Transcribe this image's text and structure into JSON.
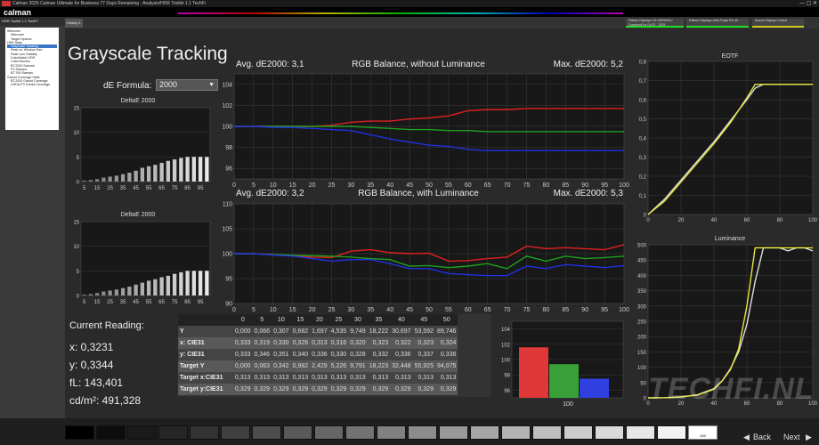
{
  "window": {
    "title": "Calman 2025 Calman Ultimate for Business 77 Days Remaining - Analysis/HDR Toolkit 1.1 TechFi",
    "controls": "—  ▢  ✕"
  },
  "app": {
    "logo": "calman"
  },
  "sidebar": {
    "header": "HDR Toolkit 1.1 TechFi",
    "items": [
      {
        "label": "Welcome",
        "selected": false
      },
      {
        "label": "Welcome",
        "selected": false
      },
      {
        "label": "Target Options",
        "selected": false
      },
      {
        "label": "HDR Stats",
        "selected": false
      },
      {
        "label": "Grayscale Tracking",
        "selected": true
      },
      {
        "label": "Peak vs. Window Size",
        "selected": false
      },
      {
        "label": "Peak Lum Stability",
        "selected": false
      },
      {
        "label": "ColorMatch HDR",
        "selected": false
      },
      {
        "label": "ColorChecker",
        "selected": false
      },
      {
        "label": "BT.2020 Saturati",
        "selected": false
      },
      {
        "label": "P3 Sweeps",
        "selected": false
      },
      {
        "label": "BT.709 Sweeps",
        "selected": false
      },
      {
        "label": "Gamut Coverage Stats",
        "selected": false
      },
      {
        "label": "BT.2020 Gamut Coverage",
        "selected": false
      },
      {
        "label": "UHDA-P3 Gamut Coverage",
        "selected": false
      }
    ]
  },
  "tabs": {
    "history": "History 1"
  },
  "devices": [
    {
      "label": "Pattern Displays CS HDR5000 / QuantumDot OLED - 2025",
      "color": "#22cc22"
    },
    {
      "label": "Pattern Displays Ultra Forge Pro 4K",
      "color": "#22cc22"
    },
    {
      "label": "Source Display Control",
      "color": "#cccc22"
    }
  ],
  "page": {
    "title": "Grayscale Tracking",
    "de_formula_label": "dE Formula:",
    "de_formula_value": "2000"
  },
  "reading": {
    "title": "Current Reading:",
    "x": "x: 0,3231",
    "y": "y: 0,3344",
    "fl": "fL: 143,401",
    "cdm2": "cd/m²: 491,328"
  },
  "charts": {
    "de_top_title": "DeltaE 2000",
    "de_bottom_title": "DeltaE 2000",
    "rgb1_avg": "Avg. dE2000: 3,1",
    "rgb1_title": "RGB Balance, without Luminance",
    "rgb1_max": "Max. dE2000: 5,2",
    "rgb2_avg": "Avg. dE2000: 3,2",
    "rgb2_title": "RGB Balance, with Luminance",
    "rgb2_max": "Max. dE2000: 5,3",
    "eotf_title": "EOTF",
    "lum_title": "Luminance",
    "rgbbar_xlabel": "100"
  },
  "chart_data": [
    {
      "id": "de_top",
      "type": "bar",
      "title": "DeltaE 2000",
      "categories": [
        "5",
        "10",
        "15",
        "20",
        "25",
        "30",
        "35",
        "40",
        "45",
        "50",
        "55",
        "60",
        "65",
        "70",
        "75",
        "80",
        "85",
        "90",
        "95",
        "100"
      ],
      "xticks": [
        "5",
        "15",
        "25",
        "35",
        "45",
        "55",
        "65",
        "75",
        "85",
        "95"
      ],
      "values": [
        0.2,
        0.3,
        0.5,
        0.8,
        1.0,
        1.2,
        1.5,
        1.8,
        2.2,
        2.8,
        3.1,
        3.4,
        3.8,
        4.2,
        4.5,
        4.8,
        5.0,
        5.0,
        5.0,
        5.0
      ],
      "ylim": [
        0,
        15
      ],
      "yticks": [
        0,
        5,
        10,
        15
      ]
    },
    {
      "id": "de_bottom",
      "type": "bar",
      "title": "DeltaE 2000",
      "categories": [
        "5",
        "10",
        "15",
        "20",
        "25",
        "30",
        "35",
        "40",
        "45",
        "50",
        "55",
        "60",
        "65",
        "70",
        "75",
        "80",
        "85",
        "90",
        "95",
        "100"
      ],
      "xticks": [
        "5",
        "15",
        "25",
        "35",
        "45",
        "55",
        "65",
        "75",
        "85",
        "95"
      ],
      "values": [
        0.2,
        0.3,
        0.5,
        0.8,
        1.0,
        1.2,
        1.5,
        1.8,
        2.2,
        2.6,
        3.0,
        3.3,
        3.7,
        4.0,
        4.4,
        4.7,
        5.0,
        5.0,
        5.0,
        5.0
      ],
      "ylim": [
        0,
        15
      ],
      "yticks": [
        0,
        5,
        10,
        15
      ]
    },
    {
      "id": "rgb1",
      "type": "line",
      "x": [
        0,
        5,
        10,
        15,
        20,
        25,
        30,
        35,
        40,
        45,
        50,
        55,
        60,
        65,
        70,
        75,
        80,
        85,
        90,
        95,
        100
      ],
      "ylim": [
        95,
        105
      ],
      "yticks": [
        96,
        98,
        100,
        102,
        104
      ],
      "xticks": [
        0,
        5,
        10,
        15,
        20,
        25,
        30,
        35,
        40,
        45,
        50,
        55,
        60,
        65,
        70,
        75,
        80,
        85,
        90,
        95,
        100
      ],
      "series": [
        {
          "color": "#e02020",
          "values": [
            100,
            100,
            100,
            100,
            100,
            100.1,
            100.4,
            100.5,
            100.5,
            100.7,
            100.8,
            101.0,
            101.5,
            101.6,
            101.6,
            101.7,
            101.7,
            101.7,
            101.7,
            101.7,
            101.7
          ]
        },
        {
          "color": "#20a020",
          "values": [
            100,
            100,
            100,
            100,
            100,
            100,
            100,
            99.9,
            99.8,
            99.7,
            99.7,
            99.6,
            99.6,
            99.5,
            99.5,
            99.5,
            99.5,
            99.5,
            99.5,
            99.5,
            99.5
          ]
        },
        {
          "color": "#2030e0",
          "values": [
            100,
            100,
            99.9,
            99.9,
            99.8,
            99.7,
            99.6,
            99.2,
            98.8,
            98.5,
            98.2,
            98.1,
            97.8,
            97.7,
            97.7,
            97.7,
            97.7,
            97.7,
            97.7,
            97.7,
            97.7
          ]
        }
      ]
    },
    {
      "id": "rgb2",
      "type": "line",
      "x": [
        0,
        5,
        10,
        15,
        20,
        25,
        30,
        35,
        40,
        45,
        50,
        55,
        60,
        65,
        70,
        75,
        80,
        85,
        90,
        95,
        100
      ],
      "ylim": [
        90,
        110
      ],
      "yticks": [
        90,
        95,
        100,
        105,
        110
      ],
      "xticks": [
        0,
        5,
        10,
        15,
        20,
        25,
        30,
        35,
        40,
        45,
        50,
        55,
        60,
        65,
        70,
        75,
        80,
        85,
        90,
        95,
        100
      ],
      "series": [
        {
          "color": "#e02020",
          "values": [
            100,
            100,
            99.8,
            99.6,
            99.3,
            99.2,
            100.5,
            100.8,
            100.2,
            100.0,
            100.1,
            98.5,
            98.6,
            99.0,
            99.3,
            101.5,
            101.0,
            101.2,
            101.0,
            100.8,
            101.8
          ]
        },
        {
          "color": "#20a020",
          "values": [
            100,
            100,
            99.8,
            99.7,
            99.6,
            99.5,
            99.3,
            99.0,
            98.8,
            97.5,
            97.6,
            97.2,
            97.5,
            98.0,
            97.0,
            99.5,
            98.5,
            99.5,
            99.0,
            99.2,
            99.5
          ]
        },
        {
          "color": "#2030e0",
          "values": [
            100,
            100,
            99.7,
            99.5,
            99.0,
            98.5,
            98.8,
            98.8,
            98.0,
            97.0,
            97.0,
            96.0,
            95.8,
            95.6,
            95.6,
            97.5,
            97.0,
            97.8,
            97.5,
            97.2,
            97.6
          ]
        }
      ]
    },
    {
      "id": "eotf",
      "type": "line",
      "title": "EOTF",
      "x": [
        0,
        10,
        20,
        30,
        40,
        50,
        60,
        65,
        70,
        75,
        80,
        90,
        100
      ],
      "ylim": [
        0,
        0.8
      ],
      "yticks": [
        0,
        0.1,
        0.2,
        0.3,
        0.4,
        0.5,
        0.6,
        0.7,
        0.8
      ],
      "xticks": [
        0,
        20,
        40,
        60,
        80,
        100
      ],
      "series": [
        {
          "color": "#dddddd",
          "values": [
            0,
            0.08,
            0.18,
            0.28,
            0.38,
            0.49,
            0.6,
            0.66,
            0.68,
            0.68,
            0.68,
            0.68,
            0.68
          ]
        },
        {
          "color": "#e6e640",
          "values": [
            0,
            0.07,
            0.17,
            0.27,
            0.37,
            0.48,
            0.61,
            0.68,
            0.68,
            0.68,
            0.68,
            0.68,
            0.68
          ]
        }
      ]
    },
    {
      "id": "lum",
      "type": "line",
      "title": "Luminance",
      "x": [
        0,
        10,
        20,
        30,
        40,
        45,
        50,
        55,
        60,
        65,
        70,
        75,
        80,
        85,
        90,
        95,
        100
      ],
      "ylim": [
        0,
        500
      ],
      "yticks": [
        0,
        50,
        100,
        150,
        200,
        250,
        300,
        350,
        400,
        450,
        500
      ],
      "xticks": [
        0,
        20,
        40,
        60,
        80,
        100
      ],
      "series": [
        {
          "color": "#dddddd",
          "values": [
            0,
            0.5,
            3,
            10,
            30,
            56,
            95,
            150,
            240,
            380,
            490,
            490,
            490,
            480,
            490,
            490,
            480
          ]
        },
        {
          "color": "#e6e640",
          "values": [
            0,
            0.5,
            3,
            9,
            28,
            55,
            92,
            160,
            300,
            490,
            490,
            490,
            490,
            490,
            490,
            490,
            490
          ]
        }
      ]
    },
    {
      "id": "rgbbar",
      "type": "bar",
      "categories": [
        "100"
      ],
      "series": [
        {
          "name": "R",
          "color": "#e03838",
          "values": [
            101.6
          ]
        },
        {
          "name": "G",
          "color": "#38a038",
          "values": [
            99.4
          ]
        },
        {
          "name": "B",
          "color": "#3040e0",
          "values": [
            97.5
          ]
        }
      ],
      "ylim": [
        95,
        105
      ],
      "yticks": [
        96,
        98,
        100,
        102,
        104
      ]
    }
  ],
  "table": {
    "columns": [
      "",
      "0",
      "5",
      "10",
      "15",
      "20",
      "25",
      "30",
      "35",
      "40",
      "45",
      "50"
    ],
    "rows": [
      [
        "Y",
        "0,000",
        "0,066",
        "0,307",
        "0,682",
        "1,697",
        "4,535",
        "9,749",
        "18,222",
        "30,697",
        "53,592",
        "89,746"
      ],
      [
        "x: CIE31",
        "0,333",
        "0,319",
        "0,330",
        "0,326",
        "0,313",
        "0,316",
        "0,320",
        "0,323",
        "0,322",
        "0,323",
        "0,324"
      ],
      [
        "y: CIE31",
        "0,333",
        "0,346",
        "0,351",
        "0,340",
        "0,336",
        "0,330",
        "0,328",
        "0,332",
        "0,336",
        "0,337",
        "0,336"
      ],
      [
        "Target Y",
        "0,000",
        "0,063",
        "0,342",
        "0,982",
        "2,429",
        "5,226",
        "9,791",
        "18,223",
        "32,448",
        "55,925",
        "94,075"
      ],
      [
        "Target x:CIE31",
        "0,313",
        "0,313",
        "0,313",
        "0,313",
        "0,313",
        "0,313",
        "0,313",
        "0,313",
        "0,313",
        "0,313",
        "0,313"
      ],
      [
        "Target y:CIE31",
        "0,329",
        "0,329",
        "0,329",
        "0,329",
        "0,329",
        "0,329",
        "0,329",
        "0,329",
        "0,329",
        "0,329",
        "0,329"
      ]
    ]
  },
  "patches": {
    "colors": [
      "#000000",
      "#0d0d0d",
      "#1a1a1a",
      "#262626",
      "#333333",
      "#404040",
      "#4d4d4d",
      "#595959",
      "#666666",
      "#737373",
      "#808080",
      "#8c8c8c",
      "#999999",
      "#a6a6a6",
      "#b3b3b3",
      "#bfbfbf",
      "#cccccc",
      "#d9d9d9",
      "#e6e6e6",
      "#f2f2f2",
      "#ffffff"
    ],
    "active_label": "100"
  },
  "nav": {
    "back": "Back",
    "next": "Next"
  },
  "watermark": "TECHFI.NL"
}
